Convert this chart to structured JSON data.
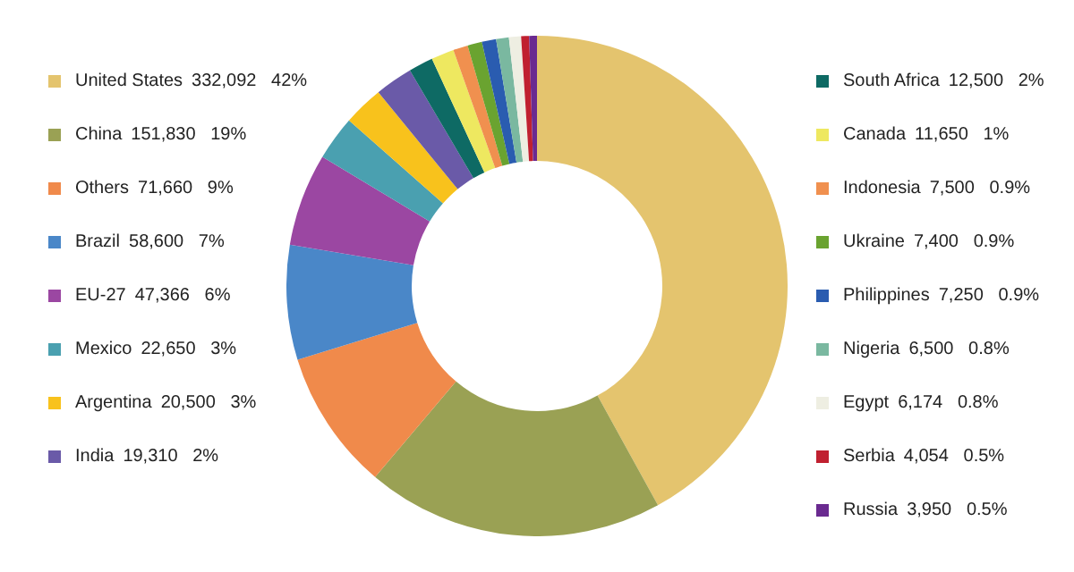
{
  "chart_data": {
    "type": "donut",
    "legend": "left",
    "categories": [
      "United States",
      "China",
      "Others",
      "Brazil",
      "EU-27",
      "Mexico",
      "Argentina",
      "India",
      "South Africa",
      "Canada",
      "Indonesia",
      "Ukraine",
      "Philippines",
      "Nigeria",
      "Egypt",
      "Serbia",
      "Russia"
    ],
    "values": [
      332092,
      151830,
      71660,
      58600,
      47366,
      22650,
      20500,
      19310,
      12500,
      11650,
      7500,
      7400,
      7250,
      6500,
      6174,
      4054,
      3950
    ],
    "value_labels": [
      "332,092   42%",
      "151,830   19%",
      "71,660   9%",
      "58,600   7%",
      "47,366   6%",
      "22,650   3%",
      "20,500   3%",
      "19,310   2%",
      "12,500   2%",
      "11,650   1%",
      "7,500   0.9%",
      "7,400   0.9%",
      "7,250   0.9%",
      "6,500   0.8%",
      "6,174   0.8%",
      "4,054   0.5%",
      "3,950   0.5%"
    ],
    "colors": [
      "#e4c46e",
      "#9aa154",
      "#f08a4b",
      "#4a87c8",
      "#9b47a2",
      "#4aa0b0",
      "#f8c21c",
      "#6a5aa8",
      "#0e6a64",
      "#eee860",
      "#f0904f",
      "#6aa330",
      "#2a5cb0",
      "#7ab8a0",
      "#eeeee2",
      "#c02030",
      "#6a2a90"
    ]
  }
}
